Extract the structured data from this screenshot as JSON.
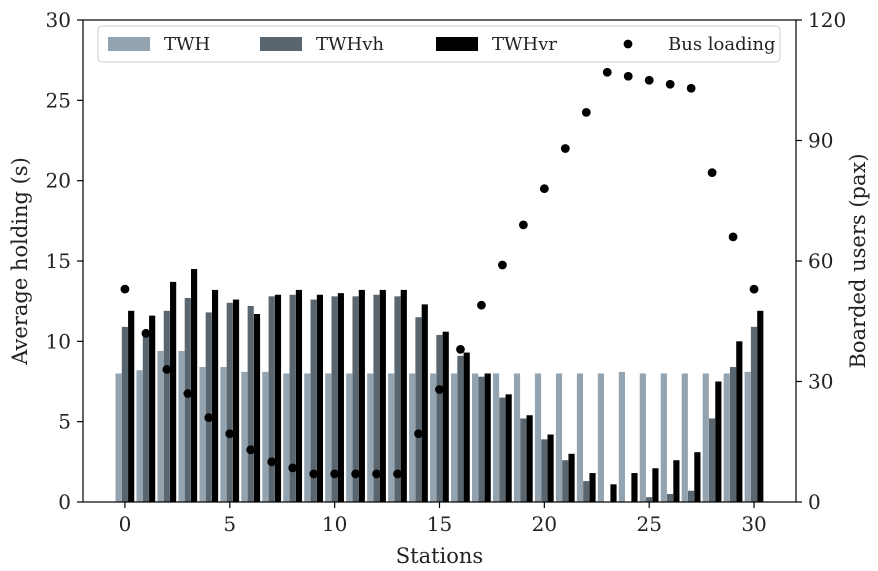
{
  "chart_data": {
    "type": "bar",
    "xlabel": "Stations",
    "ylabel_left": "Average holding (s)",
    "ylabel_right": "Boarded users (pax)",
    "xlim": [
      -2,
      32
    ],
    "ylim_left": [
      0,
      30
    ],
    "ylim_right": [
      0,
      120
    ],
    "xticks": [
      0,
      5,
      10,
      15,
      20,
      25,
      30
    ],
    "yticks_left": [
      0,
      5,
      10,
      15,
      20,
      25,
      30
    ],
    "yticks_right": [
      0,
      30,
      60,
      90,
      120
    ],
    "grid": false,
    "legend_position": "top",
    "x": [
      0,
      1,
      2,
      3,
      4,
      5,
      6,
      7,
      8,
      9,
      10,
      11,
      12,
      13,
      14,
      15,
      16,
      17,
      18,
      19,
      20,
      21,
      22,
      23,
      24,
      25,
      26,
      27,
      28,
      29,
      30
    ],
    "series": [
      {
        "name": "TWH",
        "color": "#94a3b0",
        "axis": "left",
        "values": [
          8.0,
          8.2,
          9.4,
          9.4,
          8.4,
          8.4,
          8.1,
          8.1,
          8.0,
          8.0,
          8.0,
          8.0,
          8.0,
          8.0,
          8.0,
          8.0,
          8.0,
          8.0,
          8.0,
          8.0,
          8.0,
          8.0,
          8.0,
          8.0,
          8.1,
          8.0,
          8.0,
          8.0,
          8.0,
          8.0,
          8.1
        ]
      },
      {
        "name": "TWHvh",
        "color": "#59656f",
        "axis": "left",
        "values": [
          10.9,
          10.4,
          11.9,
          12.7,
          11.8,
          12.4,
          12.2,
          12.8,
          12.9,
          12.6,
          12.8,
          12.8,
          12.9,
          12.8,
          11.5,
          10.4,
          9.1,
          7.8,
          6.5,
          5.2,
          3.9,
          2.6,
          1.3,
          0.0,
          0.0,
          0.3,
          0.5,
          0.7,
          5.2,
          8.4,
          10.9
        ]
      },
      {
        "name": "TWHvr",
        "color": "#000000",
        "axis": "left",
        "values": [
          11.9,
          11.6,
          13.7,
          14.5,
          13.2,
          12.6,
          11.7,
          12.9,
          13.2,
          12.9,
          13.0,
          13.2,
          13.2,
          13.2,
          12.3,
          10.6,
          9.3,
          8.0,
          6.7,
          5.4,
          4.2,
          3.0,
          1.8,
          1.1,
          1.8,
          2.1,
          2.6,
          3.1,
          7.5,
          10.0,
          11.9
        ]
      },
      {
        "name": "Bus loading",
        "color": "#000000",
        "axis": "right",
        "type": "scatter",
        "values": [
          53,
          42,
          33,
          27,
          21,
          17,
          13,
          10,
          8.5,
          7,
          7,
          7,
          7,
          7,
          17,
          28,
          38,
          49,
          59,
          69,
          78,
          88,
          97,
          107,
          106,
          105,
          104,
          103,
          82,
          66,
          53
        ]
      }
    ]
  }
}
